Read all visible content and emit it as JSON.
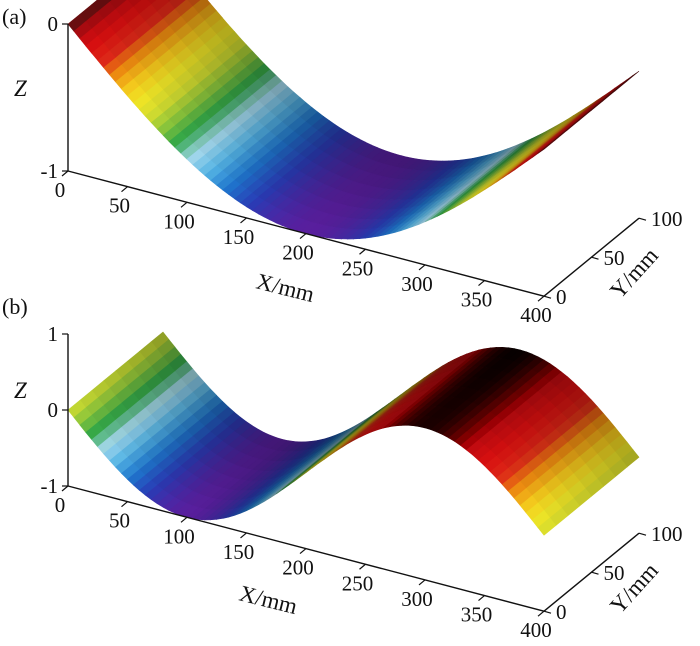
{
  "chart_data": [
    {
      "panel": "(a)",
      "type": "surface",
      "z_function": "-sin(pi*x/400)",
      "xlabel": "X/mm",
      "ylabel": "Y/mm",
      "zlabel": "Z",
      "xlim": [
        0,
        400
      ],
      "ylim": [
        0,
        100
      ],
      "zlim": [
        -1,
        0
      ],
      "x_ticks": [
        "0",
        "50",
        "100",
        "150",
        "200",
        "250",
        "300",
        "350",
        "400"
      ],
      "y_ticks": [
        "0",
        "50",
        "100"
      ],
      "z_ticks": [
        "0",
        "-1"
      ],
      "x": [
        0,
        25,
        50,
        75,
        100,
        125,
        150,
        175,
        200,
        225,
        250,
        275,
        300,
        325,
        350,
        375,
        400
      ],
      "z": [
        0,
        -0.195,
        -0.383,
        -0.556,
        -0.707,
        -0.831,
        -0.924,
        -0.981,
        -1.0,
        -0.981,
        -0.924,
        -0.831,
        -0.707,
        -0.556,
        -0.383,
        -0.195,
        0
      ]
    },
    {
      "panel": "(b)",
      "type": "surface",
      "z_function": "-sin(2*pi*x/400)",
      "xlabel": "X/mm",
      "ylabel": "Y/mm",
      "zlabel": "Z",
      "xlim": [
        0,
        400
      ],
      "ylim": [
        0,
        100
      ],
      "zlim": [
        -1,
        1
      ],
      "x_ticks": [
        "0",
        "50",
        "100",
        "150",
        "200",
        "250",
        "300",
        "350",
        "400"
      ],
      "y_ticks": [
        "0",
        "50",
        "100"
      ],
      "z_ticks": [
        "1",
        "0",
        "-1"
      ],
      "x": [
        0,
        25,
        50,
        75,
        100,
        125,
        150,
        175,
        200,
        225,
        250,
        275,
        300,
        325,
        350,
        375,
        400
      ],
      "z": [
        0,
        -0.383,
        -0.707,
        -0.924,
        -1.0,
        -0.924,
        -0.707,
        -0.383,
        0,
        0.383,
        0.707,
        0.924,
        1.0,
        0.924,
        0.707,
        0.383,
        0
      ]
    }
  ],
  "colormap": [
    "#5a1fa0",
    "#2a3cb8",
    "#1f78d0",
    "#58b8e8",
    "#a8dcf0",
    "#2ea84a",
    "#8cc83c",
    "#d8e030",
    "#f4e826",
    "#f8c81c",
    "#f08a10",
    "#e02818",
    "#dc1010",
    "#c00a10",
    "#4a1010"
  ]
}
